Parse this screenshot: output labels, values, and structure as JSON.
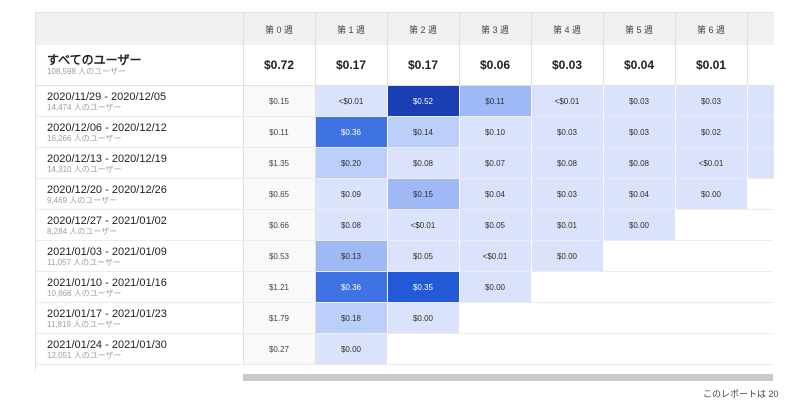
{
  "header": {
    "weeks": [
      "第 0 週",
      "第 1 週",
      "第 2 週",
      "第 3 週",
      "第 4 週",
      "第 5 週",
      "第 6 週"
    ]
  },
  "total": {
    "label": "すべてのユーザー",
    "users": "108,598 人のユーザー",
    "values": [
      "$0.72",
      "$0.17",
      "$0.17",
      "$0.06",
      "$0.03",
      "$0.04",
      "$0.01"
    ]
  },
  "cohorts": [
    {
      "range": "2020/11/29 - 2020/12/05",
      "users": "14,474 人のユーザー",
      "base": "$0.15",
      "cells": [
        {
          "v": "<$0.01",
          "lvl": 1
        },
        {
          "v": "$0.52",
          "lvl": 6
        },
        {
          "v": "$0.11",
          "lvl": 3
        },
        {
          "v": "<$0.01",
          "lvl": 1
        },
        {
          "v": "$0.03",
          "lvl": 1
        },
        {
          "v": "$0.03",
          "lvl": 1
        },
        {
          "v": "",
          "lvl": 1
        }
      ]
    },
    {
      "range": "2020/12/06 - 2020/12/12",
      "users": "16,266 人のユーザー",
      "base": "$0.11",
      "cells": [
        {
          "v": "$0.36",
          "lvl": 4
        },
        {
          "v": "$0.14",
          "lvl": 2
        },
        {
          "v": "$0.10",
          "lvl": 1
        },
        {
          "v": "$0.03",
          "lvl": 1
        },
        {
          "v": "$0.03",
          "lvl": 1
        },
        {
          "v": "$0.02",
          "lvl": 1
        },
        {
          "v": "",
          "lvl": 1
        }
      ]
    },
    {
      "range": "2020/12/13 - 2020/12/19",
      "users": "14,310 人のユーザー",
      "base": "$1.35",
      "cells": [
        {
          "v": "$0.20",
          "lvl": 2
        },
        {
          "v": "$0.08",
          "lvl": 1
        },
        {
          "v": "$0.07",
          "lvl": 1
        },
        {
          "v": "$0.08",
          "lvl": 1
        },
        {
          "v": "$0.08",
          "lvl": 1
        },
        {
          "v": "<$0.01",
          "lvl": 1
        },
        {
          "v": "",
          "lvl": 1
        }
      ]
    },
    {
      "range": "2020/12/20 - 2020/12/26",
      "users": "9,469 人のユーザー",
      "base": "$0.65",
      "cells": [
        {
          "v": "$0.09",
          "lvl": 1
        },
        {
          "v": "$0.15",
          "lvl": 3
        },
        {
          "v": "$0.04",
          "lvl": 1
        },
        {
          "v": "$0.03",
          "lvl": 1
        },
        {
          "v": "$0.04",
          "lvl": 1
        },
        {
          "v": "$0.00",
          "lvl": 1
        },
        {
          "v": "",
          "lvl": 0
        }
      ]
    },
    {
      "range": "2020/12/27 - 2021/01/02",
      "users": "8,284 人のユーザー",
      "base": "$0.66",
      "cells": [
        {
          "v": "$0.08",
          "lvl": 1
        },
        {
          "v": "<$0.01",
          "lvl": 1
        },
        {
          "v": "$0.05",
          "lvl": 1
        },
        {
          "v": "$0.01",
          "lvl": 1
        },
        {
          "v": "$0.00",
          "lvl": 1
        },
        {
          "v": "",
          "lvl": 0
        },
        {
          "v": "",
          "lvl": 0
        }
      ]
    },
    {
      "range": "2021/01/03 - 2021/01/09",
      "users": "11,057 人のユーザー",
      "base": "$0.53",
      "cells": [
        {
          "v": "$0.13",
          "lvl": 3
        },
        {
          "v": "$0.05",
          "lvl": 1
        },
        {
          "v": "<$0.01",
          "lvl": 1
        },
        {
          "v": "$0.00",
          "lvl": 1
        },
        {
          "v": "",
          "lvl": 0
        },
        {
          "v": "",
          "lvl": 0
        },
        {
          "v": "",
          "lvl": 0
        }
      ]
    },
    {
      "range": "2021/01/10 - 2021/01/16",
      "users": "10,868 人のユーザー",
      "base": "$1.21",
      "cells": [
        {
          "v": "$0.36",
          "lvl": 4
        },
        {
          "v": "$0.35",
          "lvl": 5
        },
        {
          "v": "$0.00",
          "lvl": 1
        },
        {
          "v": "",
          "lvl": 0
        },
        {
          "v": "",
          "lvl": 0
        },
        {
          "v": "",
          "lvl": 0
        },
        {
          "v": "",
          "lvl": 0
        }
      ]
    },
    {
      "range": "2021/01/17 - 2021/01/23",
      "users": "11,819 人のユーザー",
      "base": "$1.79",
      "cells": [
        {
          "v": "$0.18",
          "lvl": 2
        },
        {
          "v": "$0.00",
          "lvl": 1
        },
        {
          "v": "",
          "lvl": 0
        },
        {
          "v": "",
          "lvl": 0
        },
        {
          "v": "",
          "lvl": 0
        },
        {
          "v": "",
          "lvl": 0
        },
        {
          "v": "",
          "lvl": 0
        }
      ]
    },
    {
      "range": "2021/01/24 - 2021/01/30",
      "users": "12,051 人のユーザー",
      "base": "$0.27",
      "cells": [
        {
          "v": "$0.00",
          "lvl": 1
        },
        {
          "v": "",
          "lvl": 0
        },
        {
          "v": "",
          "lvl": 0
        },
        {
          "v": "",
          "lvl": 0
        },
        {
          "v": "",
          "lvl": 0
        },
        {
          "v": "",
          "lvl": 0
        },
        {
          "v": "",
          "lvl": 0
        }
      ]
    }
  ],
  "footer": {
    "text": "このレポートは 20"
  }
}
